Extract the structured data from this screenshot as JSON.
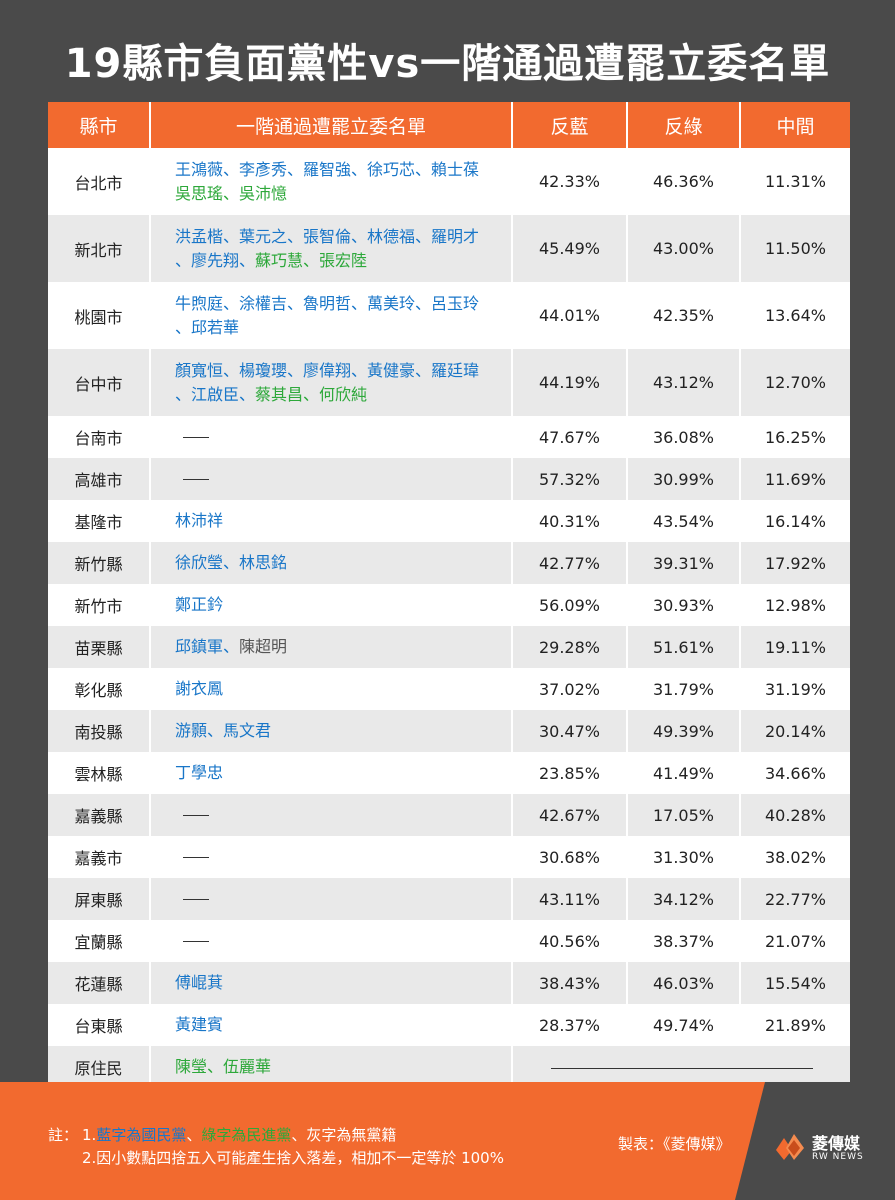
{
  "title": "19縣市負面黨性vs一階通過遭罷立委名單",
  "headers": {
    "city": "縣市",
    "names": "一階通過遭罷立委名單",
    "c1": "反藍",
    "c2": "反綠",
    "c3": "中間"
  },
  "colors": {
    "accent": "#f26a2f",
    "kmt_blue": "#1976c8",
    "dpp_green": "#2da83a",
    "background": "#4a4a4a"
  },
  "rows": [
    {
      "city": "台北市",
      "names": [
        [
          {
            "t": "王鴻薇、李彥秀、羅智強、徐巧芯、賴士葆",
            "c": "blue"
          }
        ],
        [
          {
            "t": "吳思瑤、吳沛憶",
            "c": "green"
          }
        ]
      ],
      "v1": "42.33%",
      "v2": "46.36%",
      "v3": "11.31%"
    },
    {
      "city": "新北市",
      "names": [
        [
          {
            "t": "洪孟楷、葉元之、張智倫、林德福、羅明才",
            "c": "blue"
          }
        ],
        [
          {
            "t": "、廖先翔、",
            "c": "blue"
          },
          {
            "t": "蘇巧慧、張宏陸",
            "c": "green"
          }
        ]
      ],
      "v1": "45.49%",
      "v2": "43.00%",
      "v3": "11.50%"
    },
    {
      "city": "桃園市",
      "names": [
        [
          {
            "t": "牛煦庭、涂權吉、魯明哲、萬美玲、呂玉玲",
            "c": "blue"
          }
        ],
        [
          {
            "t": "、邱若華",
            "c": "blue"
          }
        ]
      ],
      "v1": "44.01%",
      "v2": "42.35%",
      "v3": "13.64%"
    },
    {
      "city": "台中市",
      "names": [
        [
          {
            "t": "顏寬恒、楊瓊瓔、廖偉翔、黃健豪、羅廷瑋",
            "c": "blue"
          }
        ],
        [
          {
            "t": "、江啟臣、",
            "c": "blue"
          },
          {
            "t": "蔡其昌、何欣純",
            "c": "green"
          }
        ]
      ],
      "v1": "44.19%",
      "v2": "43.12%",
      "v3": "12.70%"
    },
    {
      "city": "台南市",
      "names": [],
      "v1": "47.67%",
      "v2": "36.08%",
      "v3": "16.25%"
    },
    {
      "city": "高雄市",
      "names": [],
      "v1": "57.32%",
      "v2": "30.99%",
      "v3": "11.69%"
    },
    {
      "city": "基隆市",
      "names": [
        [
          {
            "t": "林沛祥",
            "c": "blue"
          }
        ]
      ],
      "v1": "40.31%",
      "v2": "43.54%",
      "v3": "16.14%"
    },
    {
      "city": "新竹縣",
      "names": [
        [
          {
            "t": "徐欣瑩、林思銘",
            "c": "blue"
          }
        ]
      ],
      "v1": "42.77%",
      "v2": "39.31%",
      "v3": "17.92%"
    },
    {
      "city": "新竹市",
      "names": [
        [
          {
            "t": "鄭正鈐",
            "c": "blue"
          }
        ]
      ],
      "v1": "56.09%",
      "v2": "30.93%",
      "v3": "12.98%"
    },
    {
      "city": "苗栗縣",
      "names": [
        [
          {
            "t": "邱鎮軍、",
            "c": "blue"
          },
          {
            "t": "陳超明",
            "c": "gray"
          }
        ]
      ],
      "v1": "29.28%",
      "v2": "51.61%",
      "v3": "19.11%"
    },
    {
      "city": "彰化縣",
      "names": [
        [
          {
            "t": "謝衣鳳",
            "c": "blue"
          }
        ]
      ],
      "v1": "37.02%",
      "v2": "31.79%",
      "v3": "31.19%"
    },
    {
      "city": "南投縣",
      "names": [
        [
          {
            "t": "游顥、馬文君",
            "c": "blue"
          }
        ]
      ],
      "v1": "30.47%",
      "v2": "49.39%",
      "v3": "20.14%"
    },
    {
      "city": "雲林縣",
      "names": [
        [
          {
            "t": "丁學忠",
            "c": "blue"
          }
        ]
      ],
      "v1": "23.85%",
      "v2": "41.49%",
      "v3": "34.66%"
    },
    {
      "city": "嘉義縣",
      "names": [],
      "v1": "42.67%",
      "v2": "17.05%",
      "v3": "40.28%"
    },
    {
      "city": "嘉義市",
      "names": [],
      "v1": "30.68%",
      "v2": "31.30%",
      "v3": "38.02%"
    },
    {
      "city": "屏東縣",
      "names": [],
      "v1": "43.11%",
      "v2": "34.12%",
      "v3": "22.77%"
    },
    {
      "city": "宜蘭縣",
      "names": [],
      "v1": "40.56%",
      "v2": "38.37%",
      "v3": "21.07%"
    },
    {
      "city": "花蓮縣",
      "names": [
        [
          {
            "t": "傅崐萁",
            "c": "blue"
          }
        ]
      ],
      "v1": "38.43%",
      "v2": "46.03%",
      "v3": "15.54%"
    },
    {
      "city": "台東縣",
      "names": [
        [
          {
            "t": "黃建賓",
            "c": "blue"
          }
        ]
      ],
      "v1": "28.37%",
      "v2": "49.74%",
      "v3": "21.89%"
    },
    {
      "city": "原住民",
      "names": [
        [
          {
            "t": "陳瑩、伍麗華",
            "c": "green"
          }
        ]
      ],
      "v1": null,
      "v2": null,
      "v3": null
    }
  ],
  "footer": {
    "note_label": "註：",
    "note1_prefix": "1.",
    "note1_blue": "藍字為國民黨",
    "note1_sep1": "、",
    "note1_green": "綠字為民進黨",
    "note1_rest": "、灰字為無黨籍",
    "note2": "2.因小數點四捨五入可能產生捨入落差，相加不一定等於 100%",
    "maker": "製表：《菱傳媒》",
    "logo_text": "菱傳媒",
    "logo_sub": "RW NEWS"
  }
}
